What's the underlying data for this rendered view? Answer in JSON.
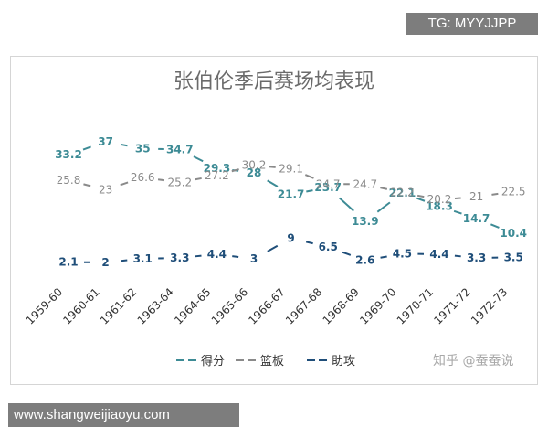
{
  "watermark_top": "TG: MYYJJPP",
  "watermark_bottom": "www.shangweijiaoyu.com",
  "source_mark": "知乎 @蚕蚕说",
  "colors": {
    "points": "#3d8b95",
    "rebounds": "#8a8a8a",
    "assists": "#1f4e79",
    "title": "#6b6b6b"
  },
  "chart_data": {
    "type": "line",
    "title": "张伯伦季后赛场均表现",
    "categories": [
      "1959-60",
      "1960-61",
      "1961-62",
      "1963-64",
      "1964-65",
      "1965-66",
      "1966-67",
      "1967-68",
      "1968-69",
      "1969-70",
      "1970-71",
      "1971-72",
      "1972-73"
    ],
    "series": [
      {
        "name": "得分",
        "values": [
          33.2,
          37,
          35,
          34.7,
          29.3,
          28,
          21.7,
          23.7,
          13.9,
          22.1,
          18.3,
          14.7,
          10.4
        ],
        "labels": [
          "33.2",
          "37",
          "35",
          "34.7",
          "29.3",
          "28",
          "21.7",
          "23.7",
          "13.9",
          "22.1",
          "18.3",
          "14.7",
          "10.4"
        ]
      },
      {
        "name": "篮板",
        "values": [
          25.8,
          23,
          26.6,
          25.2,
          27.2,
          30.2,
          29.1,
          24.7,
          24.7,
          22.2,
          20.2,
          21,
          22.5
        ],
        "labels": [
          "25.8",
          "23",
          "26.6",
          "25.2",
          "27.2",
          "30.2",
          "29.1",
          "24.7",
          "24.7",
          "22.2",
          "20.2",
          "21",
          "22.5"
        ]
      },
      {
        "name": "助攻",
        "values": [
          2.1,
          2,
          3.1,
          3.3,
          4.4,
          3,
          9,
          6.5,
          2.6,
          4.5,
          4.4,
          3.3,
          3.5
        ],
        "labels": [
          "2.1",
          "2",
          "3.1",
          "3.3",
          "4.4",
          "3",
          "9",
          "6.5",
          "2.6",
          "4.5",
          "4.4",
          "3.3",
          "3.5"
        ]
      }
    ],
    "ylim": [
      0,
      40
    ],
    "grid": false,
    "legend_position": "bottom"
  }
}
